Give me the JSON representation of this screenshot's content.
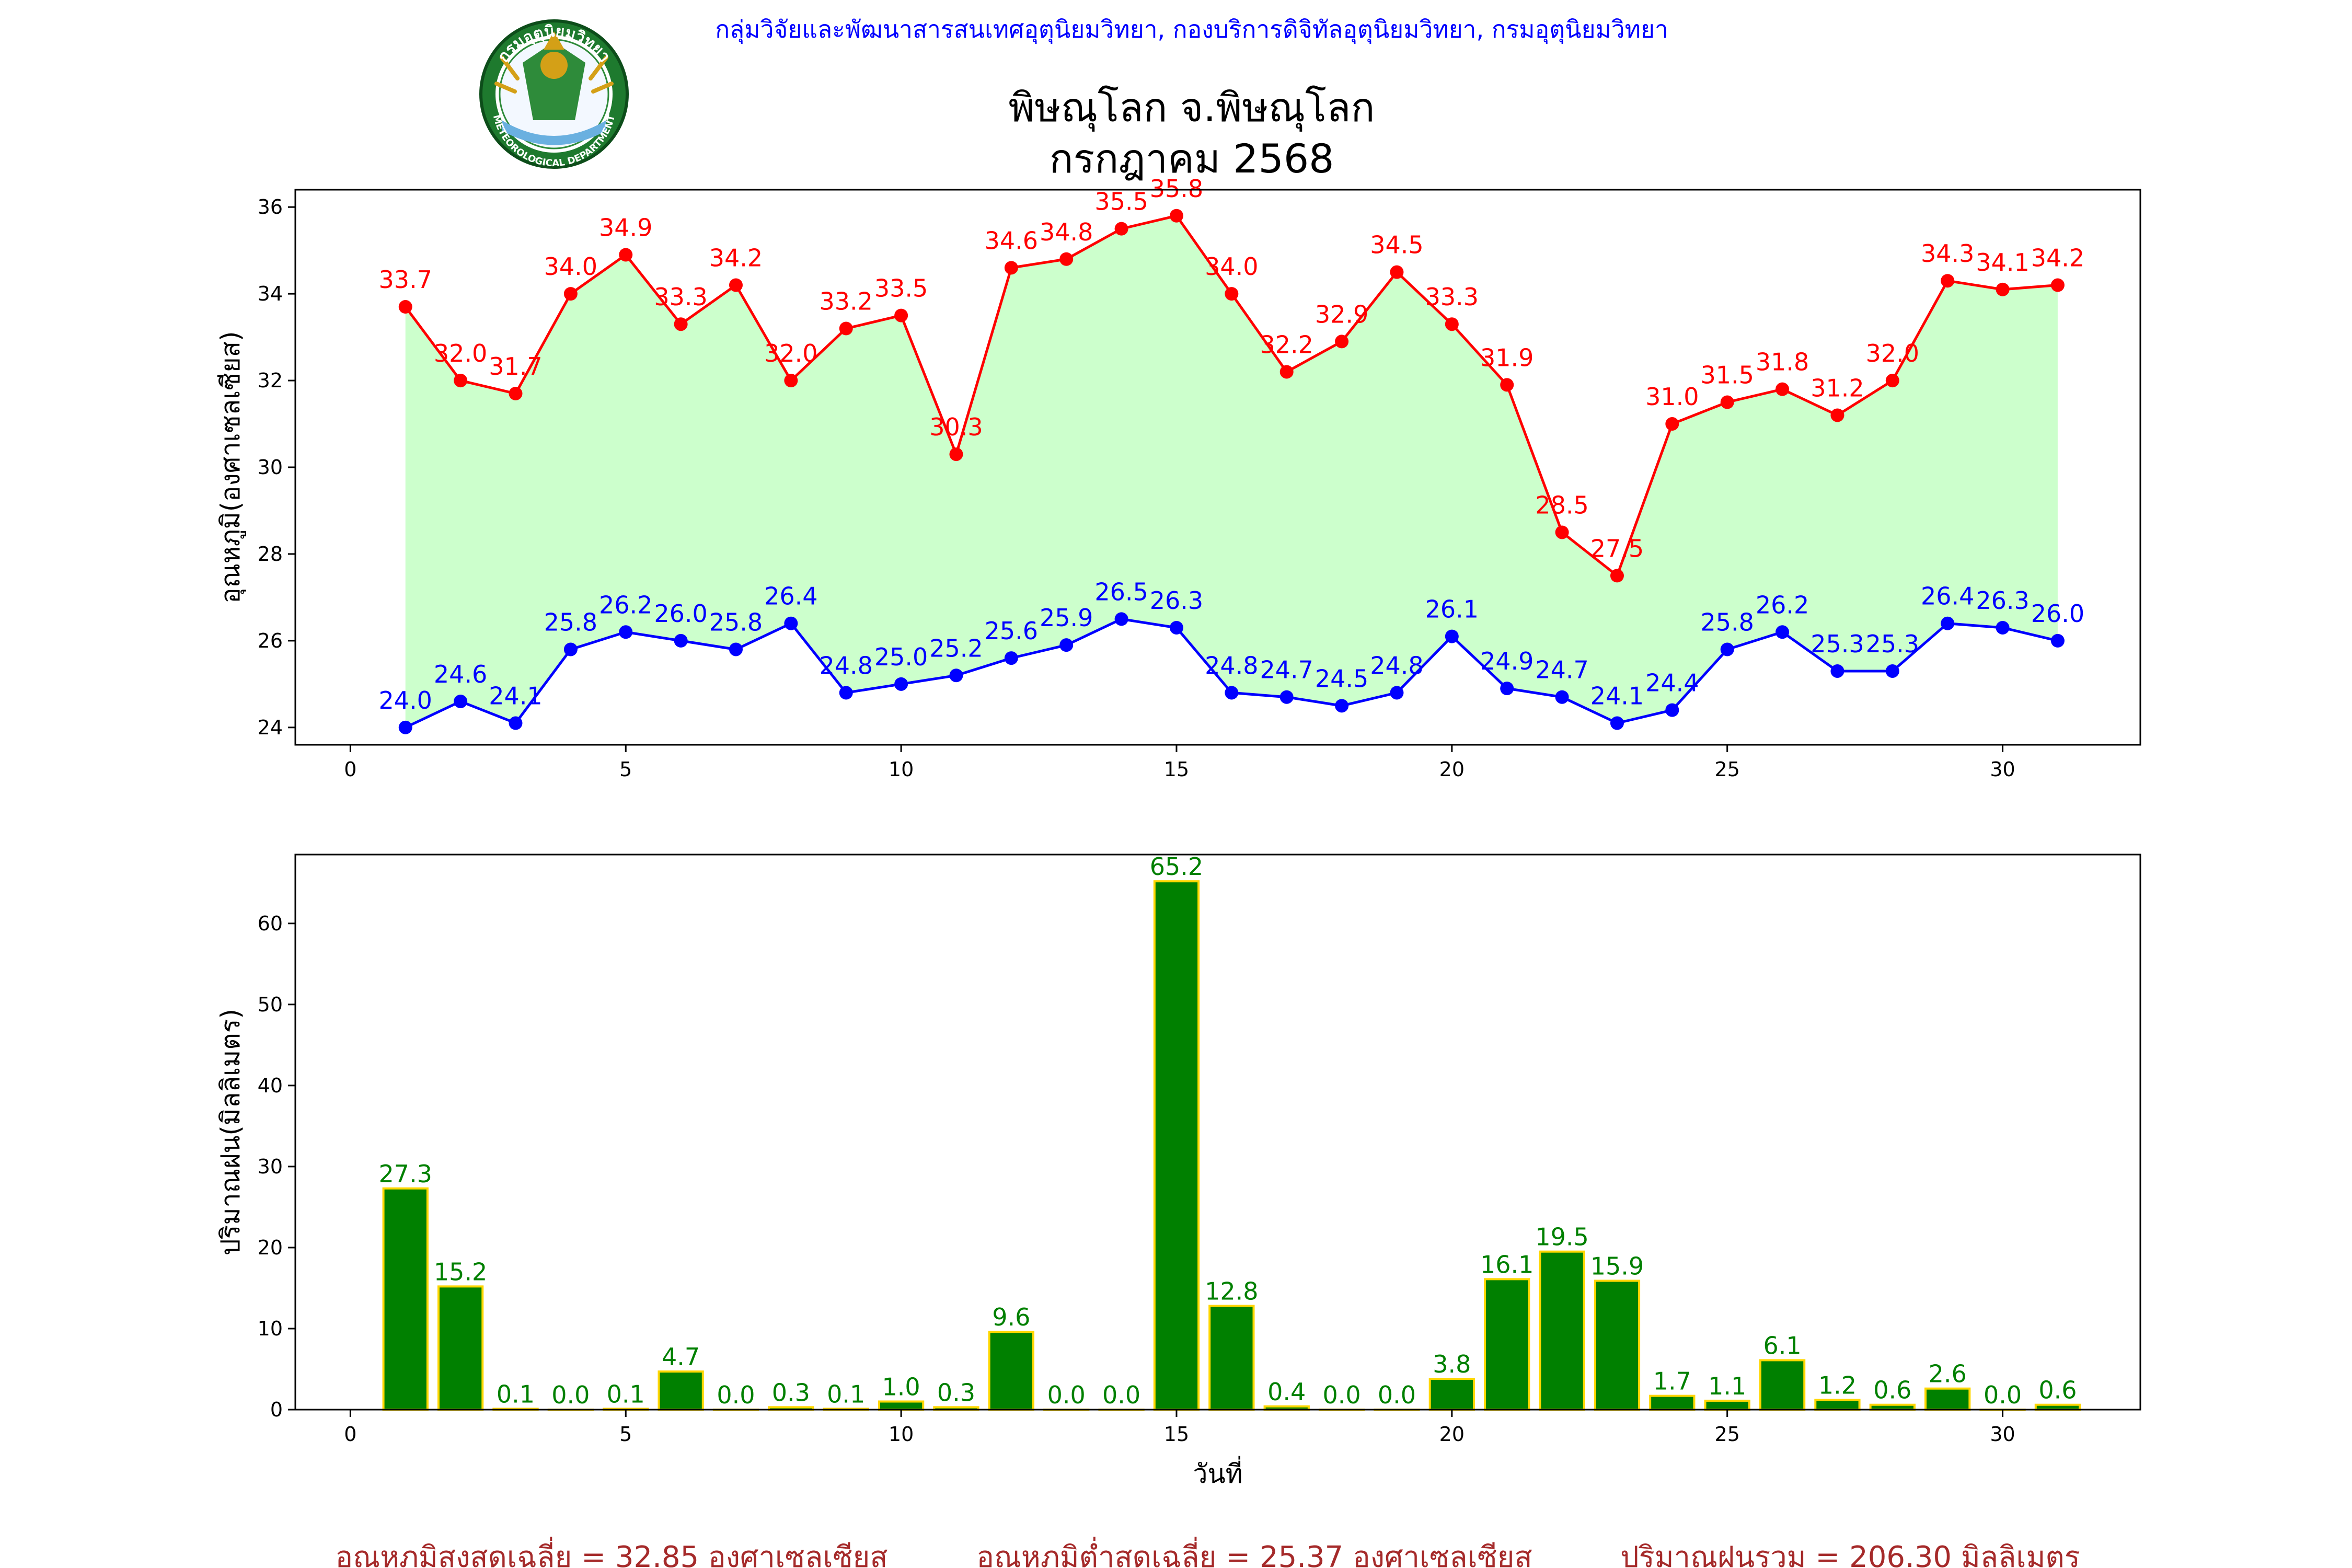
{
  "header": {
    "org_line": "กลุ่มวิจัยและพัฒนาสารสนเทศอุตุนิยมวิทยา, กองบริการดิจิทัลอุตุนิยมวิทยา, กรมอุตุนิยมวิทยา",
    "title_line1": "พิษณุโลก จ.พิษณุโลก",
    "title_line2": "กรกฎาคม 2568",
    "logo": {
      "top_text": "กรมอุตุนิยมวิทยา",
      "bottom_text": "METEOROLOGICAL DEPARTMENT"
    }
  },
  "colors": {
    "max_temp": "#ff0000",
    "min_temp": "#0000ff",
    "fill_between": "#ccffcc",
    "rain_bar": "#008000",
    "rain_bar_edge": "#ffd700",
    "rain_label": "#008000",
    "footer": "#a52a2a",
    "header": "#0000ff"
  },
  "chart_data": [
    {
      "type": "line",
      "title": "",
      "xlabel": "",
      "ylabel": "อุณหภูมิ(องศาเซลเซียส)",
      "x": [
        1,
        2,
        3,
        4,
        5,
        6,
        7,
        8,
        9,
        10,
        11,
        12,
        13,
        14,
        15,
        16,
        17,
        18,
        19,
        20,
        21,
        22,
        23,
        24,
        25,
        26,
        27,
        28,
        29,
        30,
        31
      ],
      "xlim": [
        -1,
        32.5
      ],
      "ylim": [
        23.6,
        36.4
      ],
      "xticks": [
        0,
        5,
        10,
        15,
        20,
        25,
        30
      ],
      "yticks": [
        24,
        26,
        28,
        30,
        32,
        34,
        36
      ],
      "series": [
        {
          "key": "max",
          "values": [
            33.7,
            32.0,
            31.7,
            34.0,
            34.9,
            33.3,
            34.2,
            32.0,
            33.2,
            33.5,
            30.3,
            34.6,
            34.8,
            35.5,
            35.8,
            34.0,
            32.2,
            32.9,
            34.5,
            33.3,
            31.9,
            28.5,
            27.5,
            31.0,
            31.5,
            31.8,
            31.2,
            32.0,
            34.3,
            34.1,
            34.2
          ],
          "labels": [
            "33.7",
            "32.0",
            "31.7",
            "34.0",
            "34.9",
            "33.3",
            "34.2",
            "32.0",
            "33.2",
            "33.5",
            "30.3",
            "34.6",
            "34.8",
            "35.5",
            "35.8",
            "34.0",
            "32.2",
            "32.9",
            "34.5",
            "33.3",
            "31.9",
            "28.5",
            "27.5",
            "31.0",
            "31.5",
            "31.8",
            "31.2",
            "32.0",
            "34.3",
            "34.1",
            "34.2"
          ]
        },
        {
          "key": "min",
          "values": [
            24.0,
            24.6,
            24.1,
            25.8,
            26.2,
            26.0,
            25.8,
            26.4,
            24.8,
            25.0,
            25.2,
            25.6,
            25.9,
            26.5,
            26.3,
            24.8,
            24.7,
            24.5,
            24.8,
            26.1,
            24.9,
            24.7,
            24.1,
            24.4,
            25.8,
            26.2,
            25.3,
            25.3,
            26.4,
            26.3,
            26.0
          ],
          "labels": [
            "24.0",
            "24.6",
            "24.1",
            "25.8",
            "26.2",
            "26.0",
            "25.8",
            "26.4",
            "24.8",
            "25.0",
            "25.2",
            "25.6",
            "25.9",
            "26.5",
            "26.3",
            "24.8",
            "24.7",
            "24.5",
            "24.8",
            "26.1",
            "24.9",
            "24.7",
            "24.1",
            "24.4",
            "25.8",
            "26.2",
            "25.3",
            "25.3",
            "26.4",
            "26.3",
            "26.0"
          ]
        }
      ],
      "grid": false,
      "fill_between": true
    },
    {
      "type": "bar",
      "title": "",
      "xlabel": "วันที่",
      "ylabel": "ปริมาณฝน(มิลลิเมตร)",
      "x": [
        1,
        2,
        3,
        4,
        5,
        6,
        7,
        8,
        9,
        10,
        11,
        12,
        13,
        14,
        15,
        16,
        17,
        18,
        19,
        20,
        21,
        22,
        23,
        24,
        25,
        26,
        27,
        28,
        29,
        30,
        31
      ],
      "values": [
        27.3,
        15.2,
        0.1,
        0.0,
        0.1,
        4.7,
        0.0,
        0.3,
        0.1,
        1.0,
        0.3,
        9.6,
        0.0,
        0.0,
        65.2,
        12.8,
        0.4,
        0.0,
        0.0,
        3.8,
        16.1,
        19.5,
        15.9,
        1.7,
        1.1,
        6.1,
        1.2,
        0.6,
        2.6,
        0.0,
        0.6
      ],
      "labels": [
        "27.3",
        "15.2",
        "0.1",
        "0.0",
        "0.1",
        "4.7",
        "0.0",
        "0.3",
        "0.1",
        "1.0",
        "0.3",
        "9.6",
        "0.0",
        "0.0",
        "65.2",
        "12.8",
        "0.4",
        "0.0",
        "0.0",
        "3.8",
        "16.1",
        "19.5",
        "15.9",
        "1.7",
        "1.1",
        "6.1",
        "1.2",
        "0.6",
        "2.6",
        "0.0",
        "0.6"
      ],
      "xlim": [
        -1,
        32.5
      ],
      "ylim": [
        0,
        68.5
      ],
      "xticks": [
        0,
        5,
        10,
        15,
        20,
        25,
        30
      ],
      "yticks": [
        0,
        10,
        20,
        30,
        40,
        50,
        60
      ],
      "grid": false
    }
  ],
  "footer": {
    "avg_max": "อุณหภูมิสูงสุดเฉลี่ย = 32.85 องศาเซลเซียส",
    "avg_min": "อุณหภูมิต่ำสุดเฉลี่ย = 25.37 องศาเซลเซียส",
    "total_rain": "ปริมาณฝนรวม = 206.30 มิลลิเมตร"
  }
}
